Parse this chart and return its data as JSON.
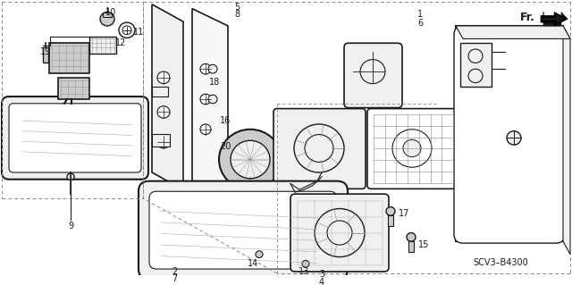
{
  "background_color": "#ffffff",
  "line_color": "#1a1a1a",
  "fig_width": 6.4,
  "fig_height": 3.19,
  "dpi": 100,
  "part_number": "SCV3–B4300",
  "gray_fill": "#e0e0e0",
  "light_gray": "#f0f0f0",
  "mid_gray": "#cccccc"
}
